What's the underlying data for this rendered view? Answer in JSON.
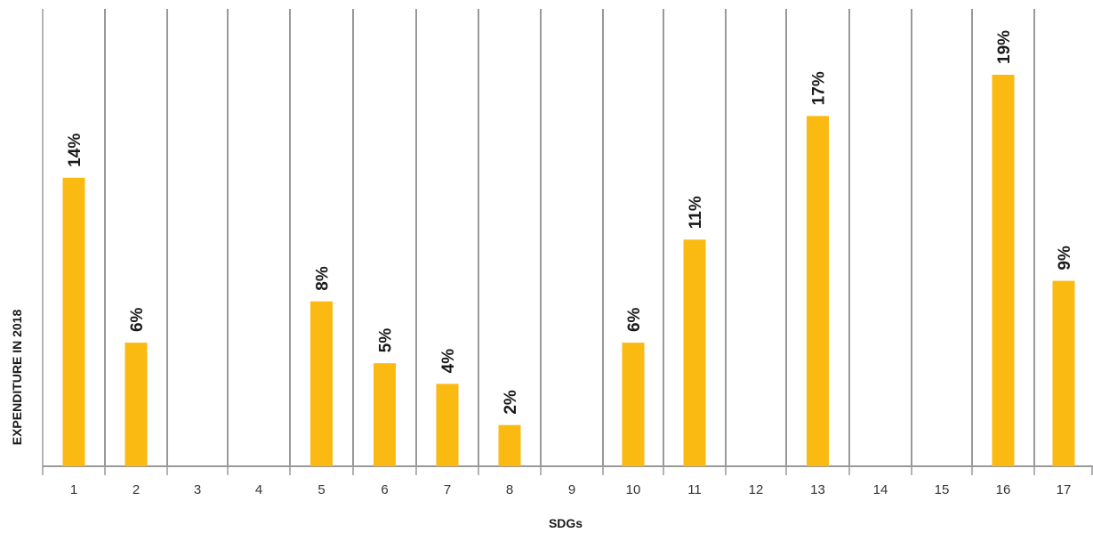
{
  "chart_data": {
    "type": "bar",
    "title": "",
    "xlabel": "SDGs",
    "ylabel": "EXPENDITURE IN 2018",
    "categories": [
      "1",
      "2",
      "3",
      "4",
      "5",
      "6",
      "7",
      "8",
      "9",
      "10",
      "11",
      "12",
      "13",
      "14",
      "15",
      "16",
      "17"
    ],
    "values": [
      14,
      6,
      0,
      0,
      8,
      5,
      4,
      2,
      0,
      6,
      11,
      0,
      17,
      0,
      0,
      19,
      9
    ],
    "value_labels": [
      "14%",
      "6%",
      "",
      "",
      "8%",
      "5%",
      "4%",
      "2%",
      "",
      "6%",
      "11%",
      "",
      "17%",
      "",
      "",
      "19%",
      "9%"
    ],
    "unit": "%",
    "ylim": [
      0,
      21
    ],
    "grid": "vertical separators between categories",
    "legend": "none"
  },
  "colors": {
    "bar": "#FBBA12",
    "separator": "#333333",
    "axis": "#999999",
    "text": "#1a1a1a"
  }
}
